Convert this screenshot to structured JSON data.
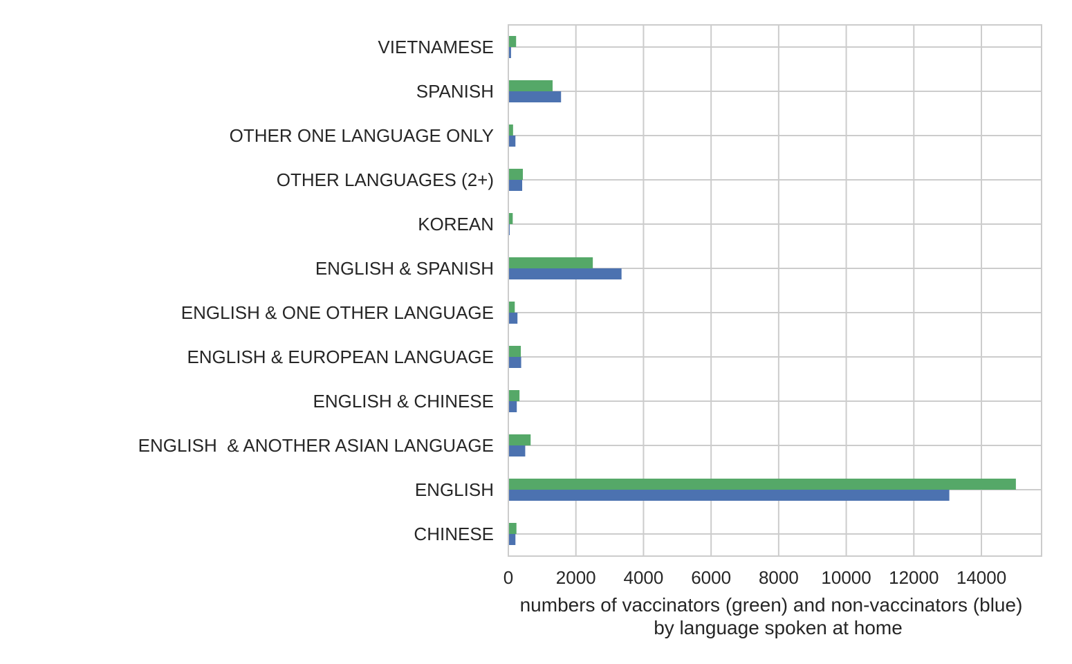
{
  "chart_data": {
    "type": "bar",
    "orientation": "horizontal",
    "categories": [
      "CHINESE",
      "ENGLISH",
      "ENGLISH  & ANOTHER ASIAN LANGUAGE",
      "ENGLISH & CHINESE",
      "ENGLISH & EUROPEAN LANGUAGE",
      "ENGLISH & ONE OTHER LANGUAGE",
      "ENGLISH & SPANISH",
      "KOREAN",
      "OTHER LANGUAGES (2+)",
      "OTHER ONE LANGUAGE ONLY",
      "SPANISH",
      "VIETNAMESE"
    ],
    "series": [
      {
        "color": "#4c72b0",
        "values": [
          210,
          13050,
          500,
          250,
          380,
          270,
          3350,
          40,
          410,
          210,
          1560,
          80
        ]
      },
      {
        "color": "#55a868",
        "values": [
          240,
          15020,
          660,
          330,
          370,
          190,
          2500,
          130,
          430,
          140,
          1310,
          230
        ]
      }
    ],
    "xticks": [
      "0",
      "2000",
      "4000",
      "6000",
      "8000",
      "10000",
      "12000",
      "14000"
    ],
    "xlim": [
      0,
      15780
    ],
    "xlabel_line1": "numbers of vaccinators (green) and non-vaccinators (blue)",
    "xlabel_line2": "by language spoken at home",
    "grid": true
  }
}
